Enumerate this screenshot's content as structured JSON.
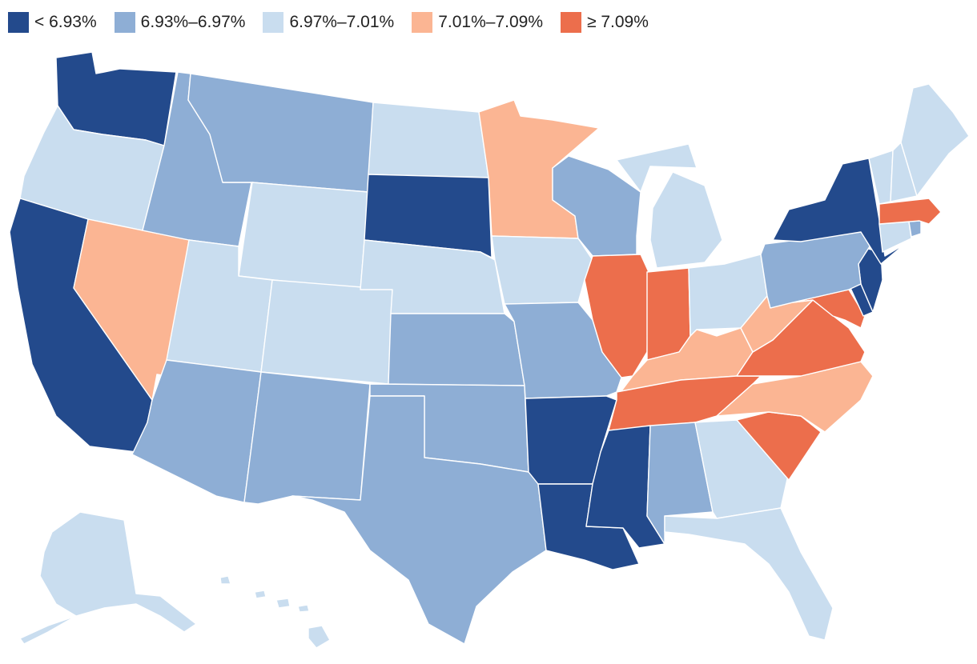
{
  "legend": {
    "items": [
      {
        "label": "< 6.93%",
        "color": "#234a8c"
      },
      {
        "label": "6.93%–6.97%",
        "color": "#8eaed5"
      },
      {
        "label": "6.97%–7.01%",
        "color": "#c9ddef"
      },
      {
        "label": "7.01%–7.09%",
        "color": "#fbb593"
      },
      {
        "label": "≥ 7.09%",
        "color": "#ec6e4c"
      }
    ]
  },
  "map": {
    "title": "",
    "states": [
      {
        "name": "Washington",
        "bin": 0
      },
      {
        "name": "Oregon",
        "bin": 2
      },
      {
        "name": "California",
        "bin": 0
      },
      {
        "name": "Nevada",
        "bin": 3
      },
      {
        "name": "Idaho",
        "bin": 1
      },
      {
        "name": "Montana",
        "bin": 1
      },
      {
        "name": "Wyoming",
        "bin": 2
      },
      {
        "name": "Utah",
        "bin": 2
      },
      {
        "name": "Arizona",
        "bin": 1
      },
      {
        "name": "Colorado",
        "bin": 2
      },
      {
        "name": "New Mexico",
        "bin": 1
      },
      {
        "name": "North Dakota",
        "bin": 2
      },
      {
        "name": "South Dakota",
        "bin": 0
      },
      {
        "name": "Nebraska",
        "bin": 2
      },
      {
        "name": "Kansas",
        "bin": 1
      },
      {
        "name": "Oklahoma",
        "bin": 1
      },
      {
        "name": "Texas",
        "bin": 1
      },
      {
        "name": "Minnesota",
        "bin": 3
      },
      {
        "name": "Iowa",
        "bin": 2
      },
      {
        "name": "Missouri",
        "bin": 1
      },
      {
        "name": "Arkansas",
        "bin": 0
      },
      {
        "name": "Louisiana",
        "bin": 0
      },
      {
        "name": "Wisconsin",
        "bin": 1
      },
      {
        "name": "Illinois",
        "bin": 4
      },
      {
        "name": "Michigan",
        "bin": 2
      },
      {
        "name": "Indiana",
        "bin": 4
      },
      {
        "name": "Ohio",
        "bin": 2
      },
      {
        "name": "Kentucky",
        "bin": 3
      },
      {
        "name": "Tennessee",
        "bin": 4
      },
      {
        "name": "Mississippi",
        "bin": 0
      },
      {
        "name": "Alabama",
        "bin": 1
      },
      {
        "name": "Georgia",
        "bin": 2
      },
      {
        "name": "Florida",
        "bin": 2
      },
      {
        "name": "South Carolina",
        "bin": 4
      },
      {
        "name": "North Carolina",
        "bin": 3
      },
      {
        "name": "Virginia",
        "bin": 4
      },
      {
        "name": "West Virginia",
        "bin": 3
      },
      {
        "name": "Maryland",
        "bin": 4
      },
      {
        "name": "Delaware",
        "bin": 0
      },
      {
        "name": "New Jersey",
        "bin": 0
      },
      {
        "name": "Pennsylvania",
        "bin": 1
      },
      {
        "name": "New York",
        "bin": 0
      },
      {
        "name": "Connecticut",
        "bin": 2
      },
      {
        "name": "Rhode Island",
        "bin": 1
      },
      {
        "name": "Massachusetts",
        "bin": 4
      },
      {
        "name": "Vermont",
        "bin": 2
      },
      {
        "name": "New Hampshire",
        "bin": 2
      },
      {
        "name": "Maine",
        "bin": 2
      },
      {
        "name": "Alaska",
        "bin": 2
      },
      {
        "name": "Hawaii",
        "bin": 2
      }
    ]
  }
}
